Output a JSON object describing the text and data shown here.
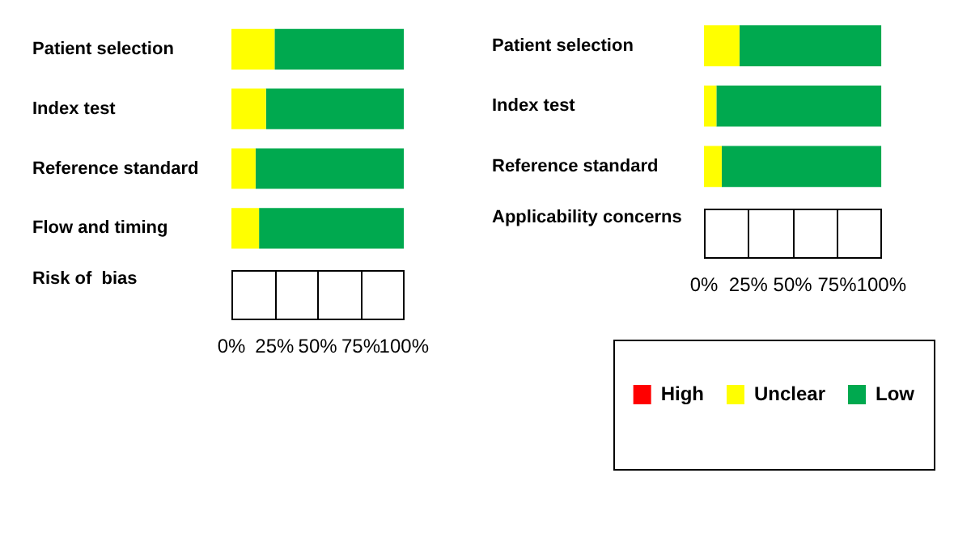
{
  "chart_data": [
    {
      "type": "bar",
      "orientation": "horizontal",
      "stacked": true,
      "xlabel": "Risk of  bias",
      "categories": [
        "Patient selection",
        "Index test",
        "Reference standard",
        "Flow and timing"
      ],
      "series": [
        {
          "color": "#ff0000",
          "values": [
            0,
            0,
            0,
            0
          ]
        },
        {
          "color": "#ffff00",
          "values": [
            25,
            20,
            14,
            16
          ]
        },
        {
          "color": "#00a94f",
          "values": [
            75,
            80,
            86,
            84
          ]
        }
      ],
      "xlim": [
        0,
        100
      ],
      "xticks": [
        {
          "value": 0,
          "label": "0%"
        },
        {
          "value": 25,
          "label": "25%"
        },
        {
          "value": 50,
          "label": "50%"
        },
        {
          "value": 75,
          "label": "75%"
        },
        {
          "value": 100,
          "label": "100%"
        }
      ],
      "legend": false
    },
    {
      "type": "bar",
      "orientation": "horizontal",
      "stacked": true,
      "xlabel": "Applicability concerns",
      "categories": [
        "Patient selection",
        "Index test",
        "Reference standard"
      ],
      "series": [
        {
          "name": "High",
          "color": "#ff0000",
          "values": [
            0,
            0,
            0
          ]
        },
        {
          "name": "Unclear",
          "color": "#ffff00",
          "values": [
            20,
            7,
            10
          ]
        },
        {
          "name": "Low",
          "color": "#00a94f",
          "values": [
            80,
            93,
            90
          ]
        }
      ],
      "xlim": [
        0,
        100
      ],
      "xticks": [
        {
          "value": 0,
          "label": "0%"
        },
        {
          "value": 25,
          "label": "25%"
        },
        {
          "value": 50,
          "label": "50%"
        },
        {
          "value": 75,
          "label": "75%"
        },
        {
          "value": 100,
          "label": "100%"
        }
      ],
      "legend": "bottom"
    }
  ]
}
